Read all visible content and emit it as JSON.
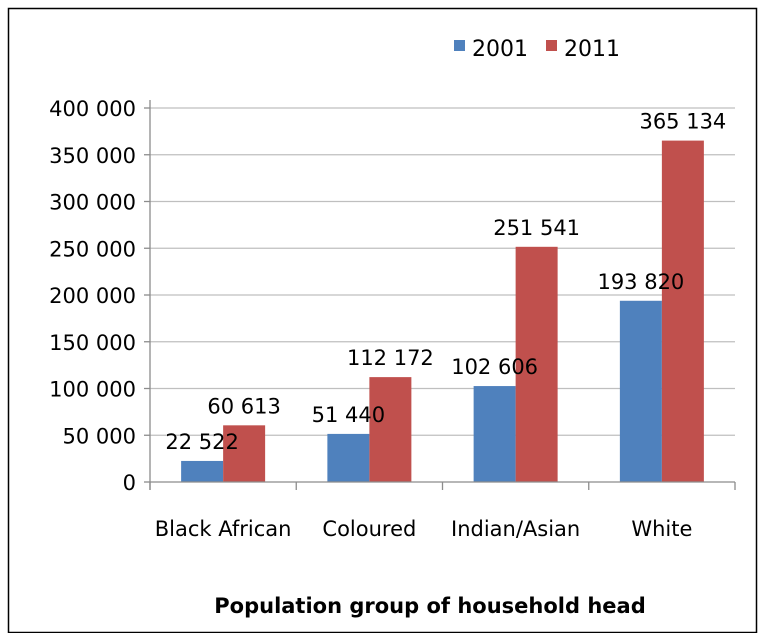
{
  "chart_data": {
    "type": "bar",
    "title": "",
    "xlabel": "Population group of household head",
    "ylabel": "",
    "categories": [
      "Black African",
      "Coloured",
      "Indian/Asian",
      "White"
    ],
    "series": [
      {
        "name": "2001",
        "color": "#4f81bd",
        "values": [
          22522,
          51440,
          102606,
          193820
        ],
        "labels": [
          "22 522",
          "51 440",
          "102 606",
          "193 820"
        ]
      },
      {
        "name": "2011",
        "color": "#c0504d",
        "values": [
          60613,
          112172,
          251541,
          365134
        ],
        "labels": [
          "60 613",
          "112 172",
          "251 541",
          "365 134"
        ]
      }
    ],
    "ylim": [
      0,
      400000
    ],
    "yticks": [
      0,
      50000,
      100000,
      150000,
      200000,
      250000,
      300000,
      350000,
      400000
    ],
    "ytick_labels": [
      "0",
      "50 000",
      "100 000",
      "150 000",
      "200 000",
      "250 000",
      "300 000",
      "350 000",
      "400 000"
    ],
    "grid": true,
    "legend_position": "top-right"
  }
}
